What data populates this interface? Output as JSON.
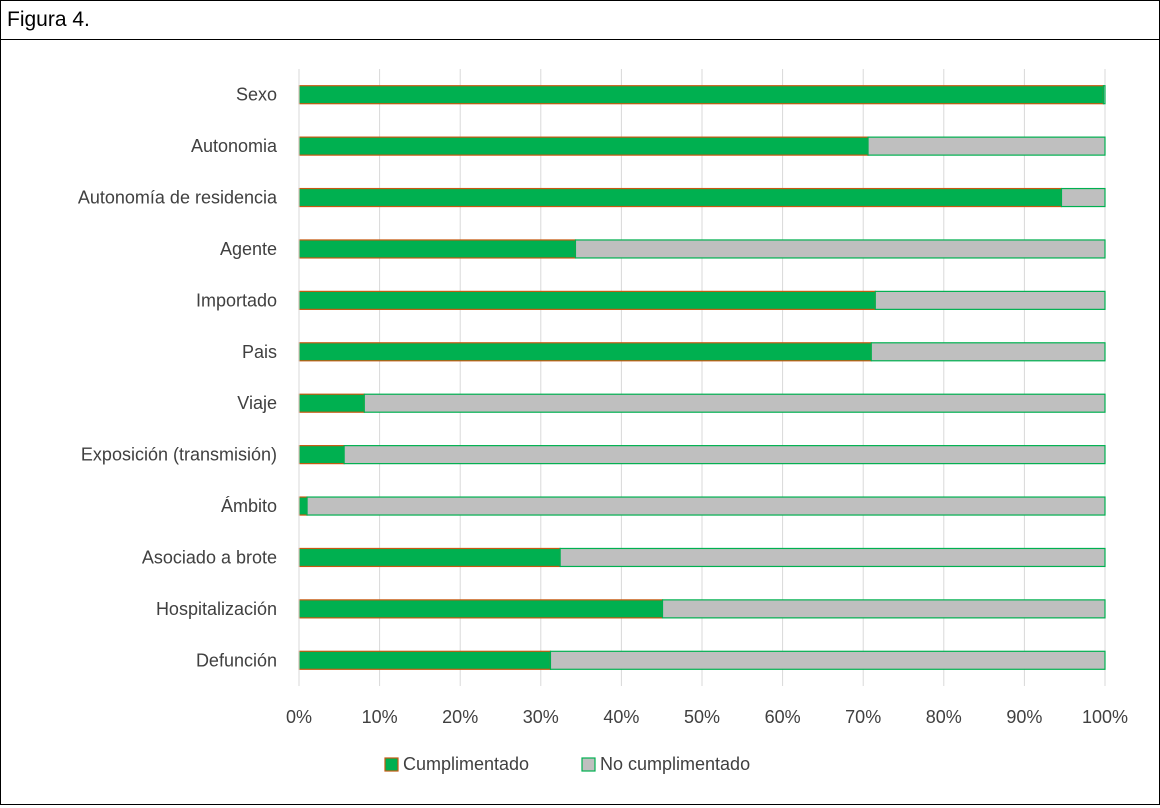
{
  "header": {
    "title": "Figura 4."
  },
  "chart_data": {
    "type": "bar",
    "orientation": "horizontal",
    "stacked": true,
    "percent_stacked": true,
    "categories": [
      "Sexo",
      "Autonomia",
      "Autonomía de residencia",
      "Agente",
      "Importado",
      "Pais",
      "Viaje",
      "Exposición (transmisión)",
      "Ámbito",
      "Asociado a brote",
      "Hospitalización",
      "Defunción"
    ],
    "series": [
      {
        "name": "Cumplimentado",
        "values": [
          99.8,
          70.6,
          94.6,
          34.3,
          71.5,
          71.0,
          8.1,
          5.6,
          1.0,
          32.4,
          45.1,
          31.2
        ],
        "fill": "#00B050",
        "stroke": "#C55A11"
      },
      {
        "name": "No cumplimentado",
        "values": [
          0.2,
          29.4,
          5.4,
          65.7,
          28.5,
          29.0,
          91.9,
          94.4,
          99.0,
          67.6,
          54.9,
          68.8
        ],
        "fill": "#BFBFBF",
        "stroke": "#00B050"
      }
    ],
    "xlim": [
      0,
      100
    ],
    "xticks": [
      "0%",
      "10%",
      "20%",
      "30%",
      "40%",
      "50%",
      "60%",
      "70%",
      "80%",
      "90%",
      "100%"
    ],
    "grid": true,
    "legend": "bottom",
    "title": "",
    "xlabel": "",
    "ylabel": ""
  }
}
